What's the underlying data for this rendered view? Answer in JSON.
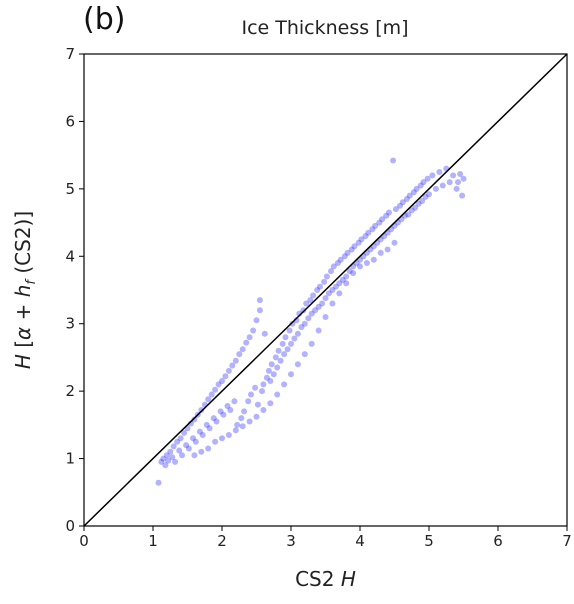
{
  "panel_label": "(b)",
  "chart_data": {
    "type": "scatter",
    "title": "Ice Thickness [m]",
    "xlabel": "CS2 H",
    "ylabel": "H [α + h_f (CS2)]",
    "xlim": [
      0,
      7
    ],
    "ylim": [
      0,
      7
    ],
    "xticks": [
      0,
      1,
      2,
      3,
      4,
      5,
      6,
      7
    ],
    "yticks": [
      0,
      1,
      2,
      3,
      4,
      5,
      6,
      7
    ],
    "grid": false,
    "legend": "none",
    "point_color": "#0000ff",
    "point_opacity": 0.3,
    "reference_line": {
      "label": "1:1",
      "from": [
        0,
        0
      ],
      "to": [
        7,
        7
      ],
      "color": "#000000"
    },
    "series": [
      {
        "points": [
          [
            1.08,
            0.64
          ],
          [
            1.12,
            0.95
          ],
          [
            1.15,
            1.0
          ],
          [
            1.18,
            0.9
          ],
          [
            1.2,
            1.05
          ],
          [
            1.22,
            0.97
          ],
          [
            1.25,
            1.1
          ],
          [
            1.28,
            1.02
          ],
          [
            1.3,
            1.18
          ],
          [
            1.32,
            0.95
          ],
          [
            1.35,
            1.25
          ],
          [
            1.38,
            1.12
          ],
          [
            1.4,
            1.3
          ],
          [
            1.42,
            1.05
          ],
          [
            1.45,
            1.38
          ],
          [
            1.48,
            1.2
          ],
          [
            1.5,
            1.45
          ],
          [
            1.52,
            1.15
          ],
          [
            1.55,
            1.52
          ],
          [
            1.58,
            1.3
          ],
          [
            1.6,
            1.58
          ],
          [
            1.62,
            1.25
          ],
          [
            1.65,
            1.65
          ],
          [
            1.68,
            1.4
          ],
          [
            1.7,
            1.72
          ],
          [
            1.72,
            1.35
          ],
          [
            1.75,
            1.8
          ],
          [
            1.78,
            1.5
          ],
          [
            1.8,
            1.88
          ],
          [
            1.82,
            1.45
          ],
          [
            1.85,
            1.95
          ],
          [
            1.88,
            1.6
          ],
          [
            1.9,
            2.02
          ],
          [
            1.92,
            1.55
          ],
          [
            1.95,
            2.1
          ],
          [
            1.98,
            1.7
          ],
          [
            2.0,
            2.15
          ],
          [
            2.02,
            1.65
          ],
          [
            2.05,
            2.22
          ],
          [
            2.08,
            1.78
          ],
          [
            2.1,
            2.3
          ],
          [
            2.12,
            1.72
          ],
          [
            2.15,
            2.38
          ],
          [
            2.18,
            1.85
          ],
          [
            2.2,
            2.45
          ],
          [
            2.22,
            1.5
          ],
          [
            2.25,
            2.55
          ],
          [
            2.28,
            1.6
          ],
          [
            2.3,
            2.62
          ],
          [
            2.32,
            1.7
          ],
          [
            2.35,
            2.72
          ],
          [
            2.38,
            1.85
          ],
          [
            2.4,
            2.8
          ],
          [
            2.42,
            1.95
          ],
          [
            2.45,
            2.9
          ],
          [
            2.48,
            2.05
          ],
          [
            2.5,
            3.05
          ],
          [
            2.52,
            1.8
          ],
          [
            2.55,
            3.2
          ],
          [
            2.58,
            2.0
          ],
          [
            2.55,
            3.35
          ],
          [
            2.6,
            2.1
          ],
          [
            2.62,
            2.85
          ],
          [
            2.65,
            2.2
          ],
          [
            2.68,
            2.3
          ],
          [
            2.7,
            2.15
          ],
          [
            2.72,
            2.4
          ],
          [
            2.75,
            2.25
          ],
          [
            2.78,
            2.5
          ],
          [
            2.8,
            2.35
          ],
          [
            2.82,
            2.6
          ],
          [
            2.85,
            2.45
          ],
          [
            2.88,
            2.7
          ],
          [
            2.9,
            2.55
          ],
          [
            2.92,
            2.8
          ],
          [
            2.95,
            2.62
          ],
          [
            2.98,
            2.9
          ],
          [
            3.0,
            2.7
          ],
          [
            3.02,
            3.0
          ],
          [
            3.05,
            2.78
          ],
          [
            3.08,
            3.05
          ],
          [
            3.1,
            2.85
          ],
          [
            3.12,
            3.15
          ],
          [
            3.15,
            2.95
          ],
          [
            3.18,
            3.2
          ],
          [
            3.2,
            3.0
          ],
          [
            3.22,
            3.3
          ],
          [
            3.25,
            3.08
          ],
          [
            3.28,
            3.35
          ],
          [
            3.3,
            3.15
          ],
          [
            3.32,
            3.42
          ],
          [
            3.35,
            3.2
          ],
          [
            3.38,
            3.5
          ],
          [
            3.4,
            3.25
          ],
          [
            3.42,
            3.55
          ],
          [
            3.45,
            3.3
          ],
          [
            3.48,
            3.62
          ],
          [
            3.5,
            3.38
          ],
          [
            3.52,
            3.7
          ],
          [
            3.55,
            3.45
          ],
          [
            3.58,
            3.78
          ],
          [
            3.6,
            3.5
          ],
          [
            3.62,
            3.85
          ],
          [
            3.65,
            3.55
          ],
          [
            3.68,
            3.9
          ],
          [
            3.7,
            3.6
          ],
          [
            3.72,
            3.95
          ],
          [
            3.75,
            3.65
          ],
          [
            3.78,
            4.0
          ],
          [
            3.8,
            3.7
          ],
          [
            3.82,
            4.05
          ],
          [
            3.85,
            3.78
          ],
          [
            3.88,
            4.1
          ],
          [
            3.9,
            3.85
          ],
          [
            3.92,
            4.15
          ],
          [
            3.95,
            3.9
          ],
          [
            3.98,
            4.2
          ],
          [
            4.0,
            3.95
          ],
          [
            4.02,
            4.25
          ],
          [
            4.05,
            4.0
          ],
          [
            4.08,
            4.3
          ],
          [
            4.1,
            4.05
          ],
          [
            4.12,
            4.35
          ],
          [
            4.15,
            4.1
          ],
          [
            4.18,
            4.4
          ],
          [
            4.2,
            4.15
          ],
          [
            4.22,
            4.45
          ],
          [
            4.25,
            4.2
          ],
          [
            4.28,
            4.5
          ],
          [
            4.3,
            4.25
          ],
          [
            4.32,
            4.55
          ],
          [
            4.35,
            4.3
          ],
          [
            4.38,
            4.6
          ],
          [
            4.4,
            4.35
          ],
          [
            4.42,
            4.65
          ],
          [
            4.45,
            4.4
          ],
          [
            4.48,
            5.42
          ],
          [
            4.5,
            4.45
          ],
          [
            4.52,
            4.7
          ],
          [
            4.55,
            4.5
          ],
          [
            4.58,
            4.75
          ],
          [
            4.6,
            4.55
          ],
          [
            4.62,
            4.8
          ],
          [
            4.65,
            4.6
          ],
          [
            4.68,
            4.85
          ],
          [
            4.7,
            4.62
          ],
          [
            4.72,
            4.9
          ],
          [
            4.75,
            4.68
          ],
          [
            4.78,
            4.95
          ],
          [
            4.8,
            4.72
          ],
          [
            4.82,
            5.0
          ],
          [
            4.85,
            4.78
          ],
          [
            4.88,
            5.05
          ],
          [
            4.9,
            4.82
          ],
          [
            4.92,
            5.1
          ],
          [
            4.95,
            4.88
          ],
          [
            4.98,
            5.15
          ],
          [
            5.0,
            4.92
          ],
          [
            5.05,
            5.2
          ],
          [
            5.1,
            5.0
          ],
          [
            5.15,
            5.25
          ],
          [
            5.2,
            5.05
          ],
          [
            5.25,
            5.3
          ],
          [
            5.3,
            5.1
          ],
          [
            5.35,
            5.2
          ],
          [
            5.4,
            5.0
          ],
          [
            5.45,
            5.22
          ],
          [
            5.5,
            5.15
          ],
          [
            5.48,
            4.9
          ],
          [
            5.42,
            5.1
          ],
          [
            1.6,
            1.05
          ],
          [
            1.7,
            1.1
          ],
          [
            1.8,
            1.15
          ],
          [
            1.9,
            1.25
          ],
          [
            2.0,
            1.3
          ],
          [
            2.1,
            1.35
          ],
          [
            2.2,
            1.42
          ],
          [
            2.3,
            1.48
          ],
          [
            2.4,
            1.55
          ],
          [
            2.5,
            1.62
          ],
          [
            2.6,
            1.72
          ],
          [
            2.7,
            1.82
          ],
          [
            2.8,
            1.95
          ],
          [
            2.9,
            2.1
          ],
          [
            3.0,
            2.25
          ],
          [
            3.1,
            2.4
          ],
          [
            3.2,
            2.55
          ],
          [
            3.3,
            2.7
          ],
          [
            3.4,
            2.9
          ],
          [
            3.5,
            3.1
          ],
          [
            3.6,
            3.3
          ],
          [
            3.7,
            3.45
          ],
          [
            3.8,
            3.6
          ],
          [
            3.9,
            3.75
          ],
          [
            4.0,
            3.85
          ],
          [
            4.1,
            3.9
          ],
          [
            4.2,
            3.95
          ],
          [
            4.3,
            4.05
          ],
          [
            4.4,
            4.1
          ],
          [
            4.5,
            4.2
          ]
        ]
      }
    ]
  }
}
